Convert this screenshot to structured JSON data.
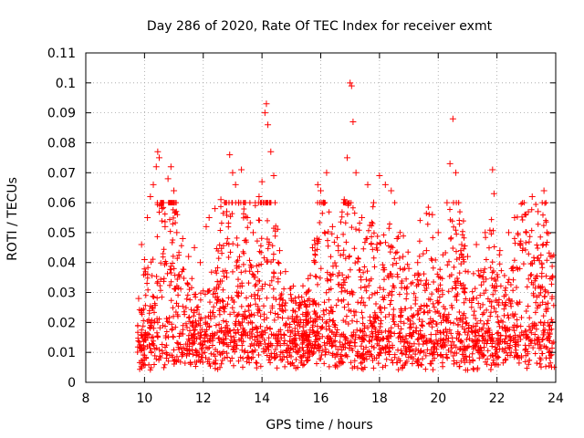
{
  "chart_data": {
    "type": "scatter",
    "title": "Day 286 of 2020, Rate Of TEC Index for receiver exmt",
    "xlabel": "GPS time / hours",
    "ylabel": "ROTI / TECUs",
    "xlim": [
      8,
      24
    ],
    "ylim": [
      0,
      0.11
    ],
    "x_ticks": [
      "8",
      "10",
      "12",
      "14",
      "16",
      "18",
      "20",
      "22",
      "24"
    ],
    "y_ticks": [
      "0",
      "0.01",
      "0.02",
      "0.03",
      "0.04",
      "0.05",
      "0.06",
      "0.07",
      "0.08",
      "0.09",
      "0.1",
      "0.11"
    ],
    "grid": true,
    "marker": "plus",
    "series_color": "#ff0000",
    "series": [
      {
        "points": [
          [
            9.8,
            0.028
          ],
          [
            9.9,
            0.046
          ],
          [
            10.0,
            0.041
          ],
          [
            10.1,
            0.055
          ],
          [
            10.2,
            0.062
          ],
          [
            10.3,
            0.066
          ],
          [
            10.4,
            0.072
          ],
          [
            10.45,
            0.077
          ],
          [
            10.5,
            0.075
          ],
          [
            10.6,
            0.058
          ],
          [
            10.7,
            0.052
          ],
          [
            10.8,
            0.068
          ],
          [
            10.9,
            0.072
          ],
          [
            11.0,
            0.064
          ],
          [
            11.1,
            0.05
          ],
          [
            11.3,
            0.048
          ],
          [
            11.5,
            0.042
          ],
          [
            11.7,
            0.045
          ],
          [
            11.9,
            0.04
          ],
          [
            12.1,
            0.052
          ],
          [
            12.2,
            0.055
          ],
          [
            12.4,
            0.058
          ],
          [
            12.6,
            0.061
          ],
          [
            12.8,
            0.057
          ],
          [
            12.9,
            0.076
          ],
          [
            13.0,
            0.07
          ],
          [
            13.1,
            0.066
          ],
          [
            13.2,
            0.06
          ],
          [
            13.3,
            0.071
          ],
          [
            13.5,
            0.055
          ],
          [
            13.7,
            0.05
          ],
          [
            13.9,
            0.062
          ],
          [
            14.0,
            0.067
          ],
          [
            14.1,
            0.09
          ],
          [
            14.15,
            0.093
          ],
          [
            14.2,
            0.086
          ],
          [
            14.3,
            0.077
          ],
          [
            14.4,
            0.069
          ],
          [
            14.6,
            0.044
          ],
          [
            14.8,
            0.037
          ],
          [
            15.0,
            0.028
          ],
          [
            15.2,
            0.02
          ],
          [
            15.5,
            0.022
          ],
          [
            15.8,
            0.046
          ],
          [
            15.9,
            0.066
          ],
          [
            16.0,
            0.064
          ],
          [
            16.1,
            0.06
          ],
          [
            16.2,
            0.07
          ],
          [
            16.4,
            0.052
          ],
          [
            16.6,
            0.044
          ],
          [
            16.8,
            0.061
          ],
          [
            16.9,
            0.075
          ],
          [
            17.0,
            0.1
          ],
          [
            17.05,
            0.099
          ],
          [
            17.1,
            0.087
          ],
          [
            17.2,
            0.07
          ],
          [
            17.4,
            0.055
          ],
          [
            17.6,
            0.066
          ],
          [
            17.8,
            0.06
          ],
          [
            18.0,
            0.069
          ],
          [
            18.2,
            0.066
          ],
          [
            18.4,
            0.064
          ],
          [
            18.6,
            0.048
          ],
          [
            18.8,
            0.042
          ],
          [
            19.0,
            0.038
          ],
          [
            19.3,
            0.04
          ],
          [
            19.6,
            0.044
          ],
          [
            19.8,
            0.056
          ],
          [
            20.0,
            0.05
          ],
          [
            20.3,
            0.06
          ],
          [
            20.4,
            0.073
          ],
          [
            20.5,
            0.088
          ],
          [
            20.6,
            0.07
          ],
          [
            20.8,
            0.046
          ],
          [
            21.0,
            0.042
          ],
          [
            21.3,
            0.046
          ],
          [
            21.6,
            0.05
          ],
          [
            21.85,
            0.071
          ],
          [
            21.9,
            0.063
          ],
          [
            22.1,
            0.044
          ],
          [
            22.4,
            0.05
          ],
          [
            22.6,
            0.055
          ],
          [
            22.8,
            0.046
          ],
          [
            23.0,
            0.05
          ],
          [
            23.2,
            0.062
          ],
          [
            23.4,
            0.057
          ],
          [
            23.6,
            0.064
          ],
          [
            23.7,
            0.05
          ],
          [
            23.9,
            0.035
          ]
        ]
      }
    ]
  }
}
